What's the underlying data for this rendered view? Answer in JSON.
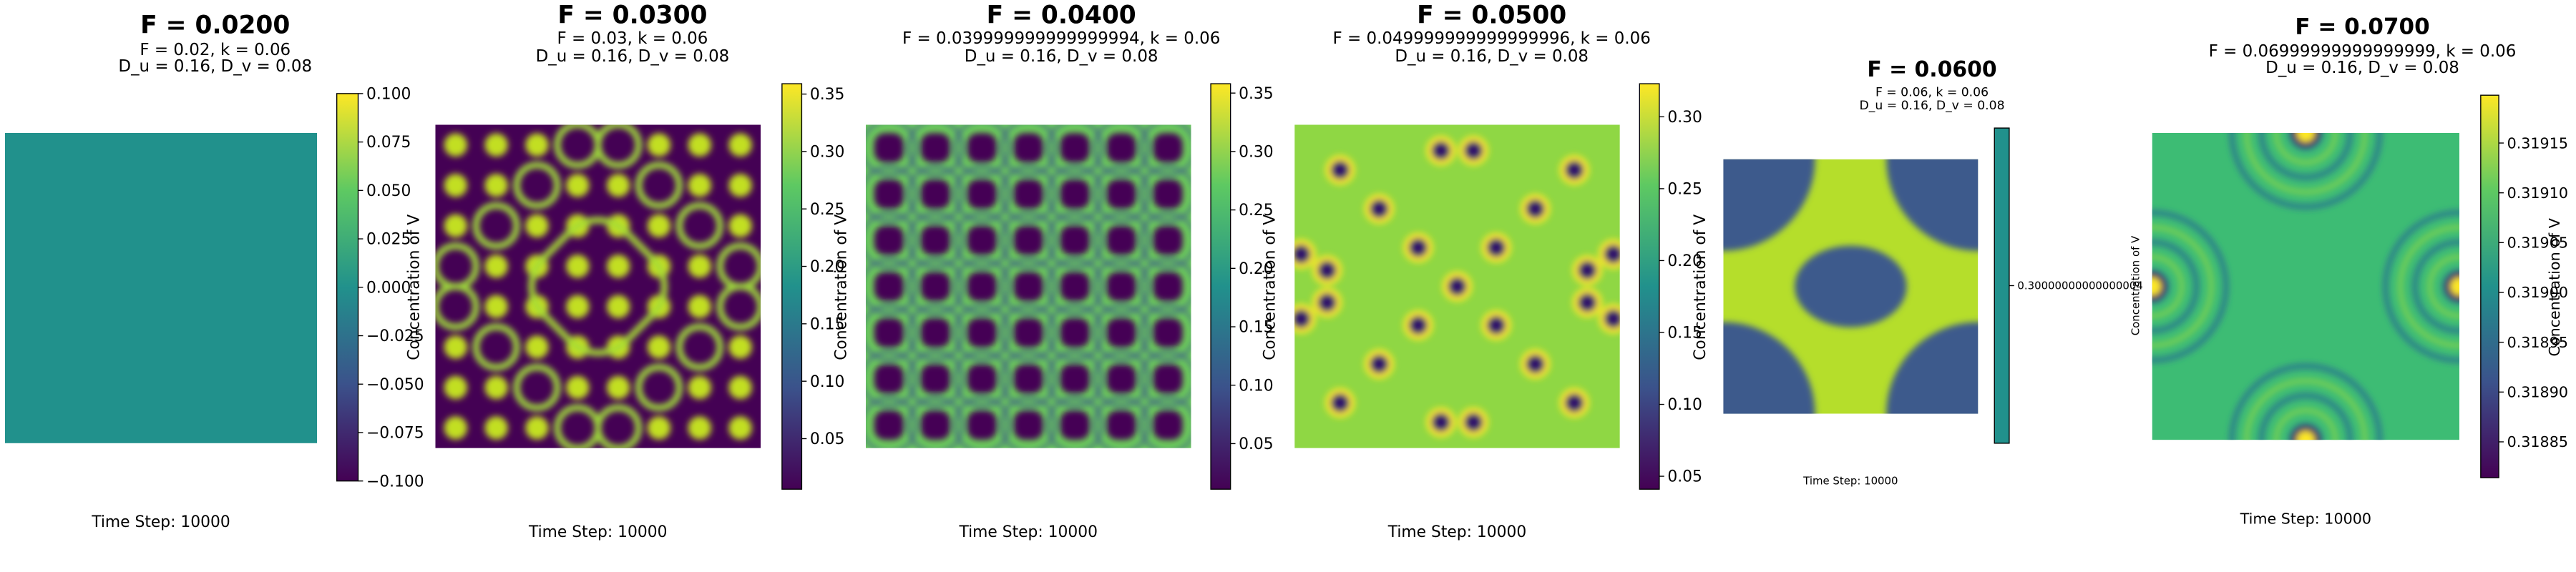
{
  "chart_data": [
    {
      "type": "heatmap",
      "title": "F = 0.0200",
      "subtitle": [
        "F = 0.02, k = 0.06",
        "D_u = 0.16, D_v = 0.08"
      ],
      "colorbar_label": "Concentration of V",
      "clim": [
        -0.1,
        0.1
      ],
      "cticks": [
        {
          "value": 0.1,
          "label": "0.100"
        },
        0.075,
        {
          "value": 0.05,
          "label": "0.050"
        },
        0.025,
        {
          "value": 0,
          "label": "0.000"
        },
        {
          "value": -0.025,
          "label": "−0.025"
        },
        {
          "value": -0.05,
          "label": "−0.050"
        },
        {
          "value": -0.075,
          "label": "−0.075"
        },
        {
          "value": -0.1,
          "label": "−0.100"
        }
      ],
      "xlabel": "Time Step: 10000"
    },
    {
      "type": "heatmap",
      "title": "F = 0.0300",
      "subtitle": [
        "F = 0.03, k = 0.06",
        "D_u = 0.16, D_v = 0.08"
      ],
      "colorbar_label": "Concentration of V",
      "clim": [
        0.006,
        0.359
      ],
      "cticks": [
        0.35,
        {
          "value": 0.3,
          "label": "0.30"
        },
        0.25,
        {
          "value": 0.2,
          "label": "0.20"
        },
        0.15,
        {
          "value": 0.1,
          "label": "0.10"
        },
        0.05
      ],
      "xlabel": "Time Step: 10000"
    },
    {
      "type": "heatmap",
      "title": "F = 0.0400",
      "subtitle": [
        "F = 0.039999999999999994, k = 0.06",
        "D_u = 0.16, D_v = 0.08"
      ],
      "colorbar_label": "Concentration of V",
      "clim": [
        0.011,
        0.358
      ],
      "cticks": [
        0.35,
        {
          "value": 0.3,
          "label": "0.30"
        },
        0.25,
        {
          "value": 0.2,
          "label": "0.20"
        },
        0.15,
        {
          "value": 0.1,
          "label": "0.10"
        },
        0.05
      ],
      "xlabel": "Time Step: 10000"
    },
    {
      "type": "heatmap",
      "title": "F = 0.0500",
      "subtitle": [
        "F = 0.049999999999999996, k = 0.06",
        "D_u = 0.16, D_v = 0.08"
      ],
      "colorbar_label": "Concentration of V",
      "clim": [
        0.041,
        0.323
      ],
      "cticks": [
        {
          "value": 0.3,
          "label": "0.30"
        },
        0.25,
        {
          "value": 0.2,
          "label": "0.20"
        },
        0.15,
        {
          "value": 0.1,
          "label": "0.10"
        },
        0.05
      ],
      "xlabel": "Time Step: 10000"
    },
    {
      "type": "heatmap",
      "title": "F = 0.0600",
      "subtitle": [
        "F = 0.06, k = 0.06",
        "D_u = 0.16, D_v = 0.08"
      ],
      "colorbar_label": "Concentration of V",
      "clim": [
        0.29,
        0.31
      ],
      "cticks": [
        {
          "value": 0.30000000000000004,
          "label": "0.30000000000000004"
        }
      ],
      "xlabel": "Time Step: 10000"
    },
    {
      "type": "heatmap",
      "title": "F = 0.0700",
      "subtitle": [
        "F = 0.06999999999999999, k = 0.06",
        "D_u = 0.16, D_v = 0.08"
      ],
      "colorbar_label": "Concentration of V",
      "clim": [
        0.318814,
        0.319198
      ],
      "cticks": [
        0.31915,
        {
          "value": 0.3191,
          "label": "0.31910"
        },
        0.31905,
        {
          "value": 0.319,
          "label": "0.31900"
        },
        0.31895,
        {
          "value": 0.3189,
          "label": "0.31890"
        },
        0.31885
      ],
      "xlabel": "Time Step: 10000"
    }
  ]
}
